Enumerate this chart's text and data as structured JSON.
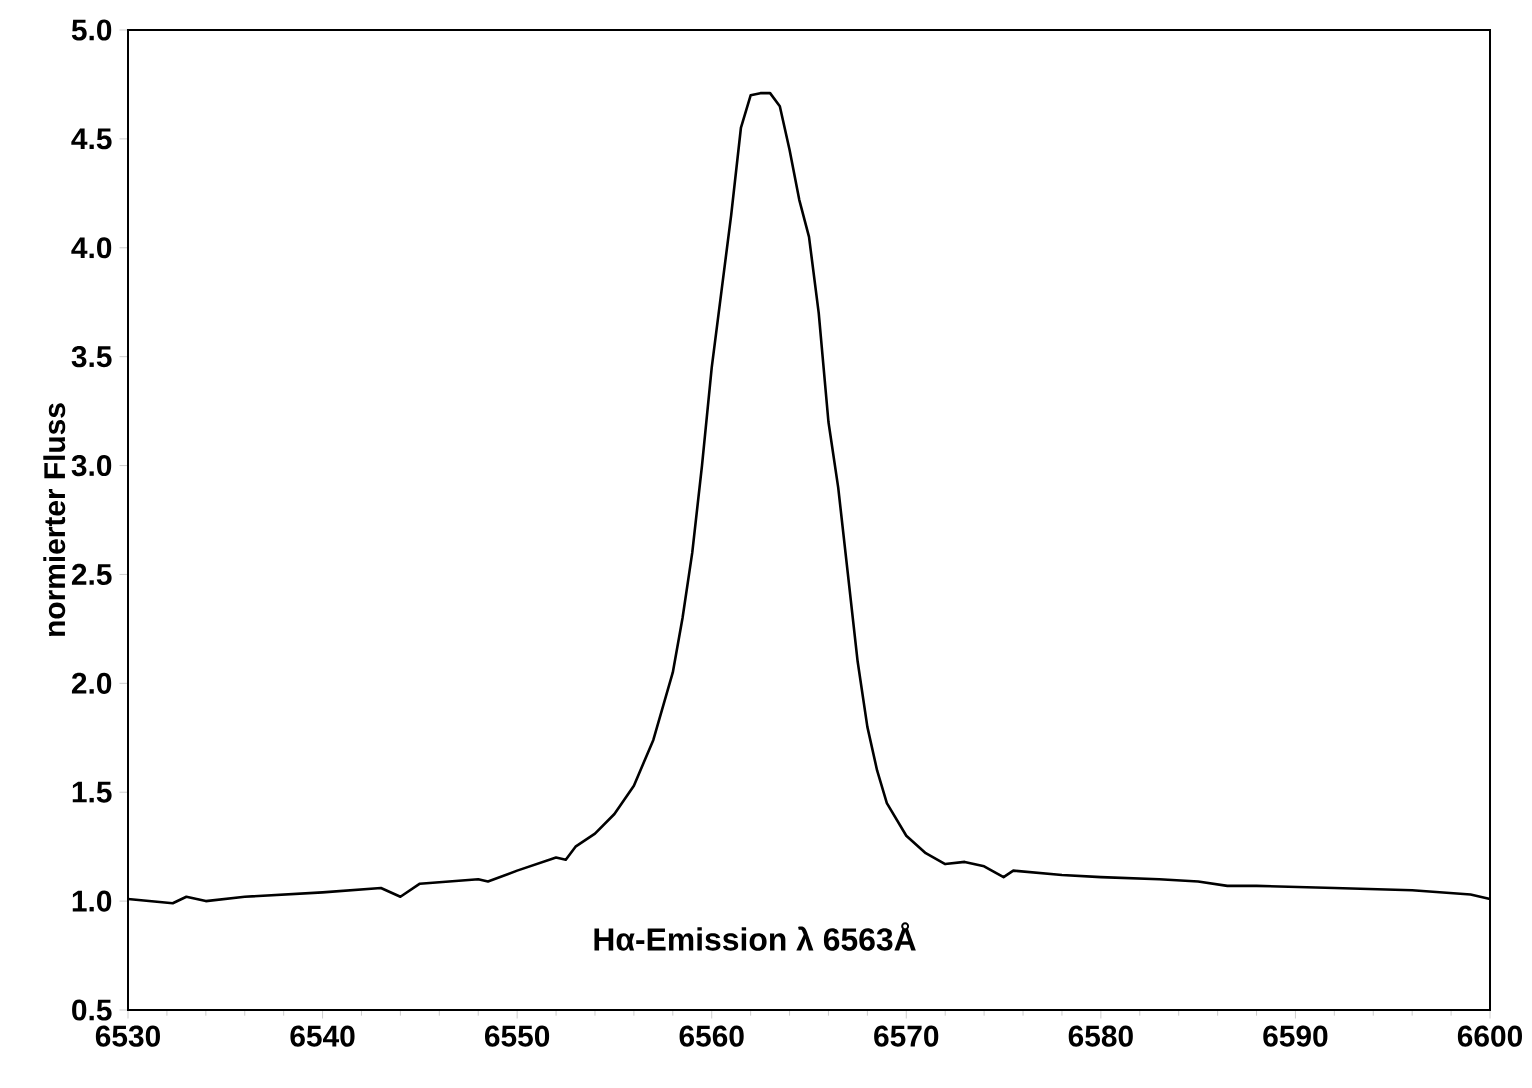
{
  "chart_data": {
    "type": "line",
    "ylabel": "normierter Fluss",
    "annotations": [
      "Hα-Emission λ 6563Å"
    ],
    "xlim": [
      6530,
      6600
    ],
    "xticks": [
      6530,
      6540,
      6550,
      6560,
      6570,
      6580,
      6590,
      6600
    ],
    "ylim": [
      0.5,
      5.0
    ],
    "yticks": [
      {
        "value": 0.5,
        "label": "0.5"
      },
      {
        "value": 1.0,
        "label": "1.0"
      },
      {
        "value": 1.5,
        "label": "1.5"
      },
      {
        "value": 2.0,
        "label": "2.0"
      },
      {
        "value": 2.5,
        "label": "2.5"
      },
      {
        "value": 3.0,
        "label": "3.0"
      },
      {
        "value": 3.5,
        "label": "3.5"
      },
      {
        "value": 4.0,
        "label": "4.0"
      },
      {
        "value": 4.5,
        "label": "4.5"
      },
      {
        "value": 5.0,
        "label": "5.0"
      }
    ],
    "grid": false,
    "marker": "none",
    "line_style": "solid",
    "series": [
      {
        "color": "#000000",
        "x": [
          6530,
          6532.3,
          6533,
          6534,
          6536,
          6540,
          6543,
          6544,
          6545,
          6548,
          6548.5,
          6550,
          6552,
          6552.5,
          6553,
          6554,
          6555,
          6556,
          6557,
          6558,
          6558.5,
          6559,
          6559.5,
          6560,
          6560.5,
          6561,
          6561.5,
          6562,
          6562.5,
          6563,
          6563.5,
          6564,
          6564.5,
          6565,
          6565.5,
          6566,
          6566.5,
          6567,
          6567.5,
          6568,
          6568.5,
          6569,
          6570,
          6571,
          6572,
          6573,
          6574,
          6575,
          6575.5,
          6578,
          6580,
          6583,
          6585,
          6586.5,
          6588,
          6592,
          6596,
          6599,
          6600
        ],
        "values": [
          1.01,
          0.99,
          1.02,
          1.0,
          1.02,
          1.04,
          1.06,
          1.02,
          1.08,
          1.1,
          1.09,
          1.14,
          1.2,
          1.19,
          1.25,
          1.31,
          1.4,
          1.53,
          1.74,
          2.05,
          2.3,
          2.6,
          3.0,
          3.45,
          3.8,
          4.15,
          4.55,
          4.7,
          4.71,
          4.71,
          4.65,
          4.45,
          4.22,
          4.05,
          3.7,
          3.2,
          2.9,
          2.5,
          2.1,
          1.8,
          1.6,
          1.45,
          1.3,
          1.22,
          1.17,
          1.18,
          1.16,
          1.11,
          1.14,
          1.12,
          1.11,
          1.1,
          1.09,
          1.07,
          1.07,
          1.06,
          1.05,
          1.03,
          1.01
        ]
      }
    ]
  }
}
